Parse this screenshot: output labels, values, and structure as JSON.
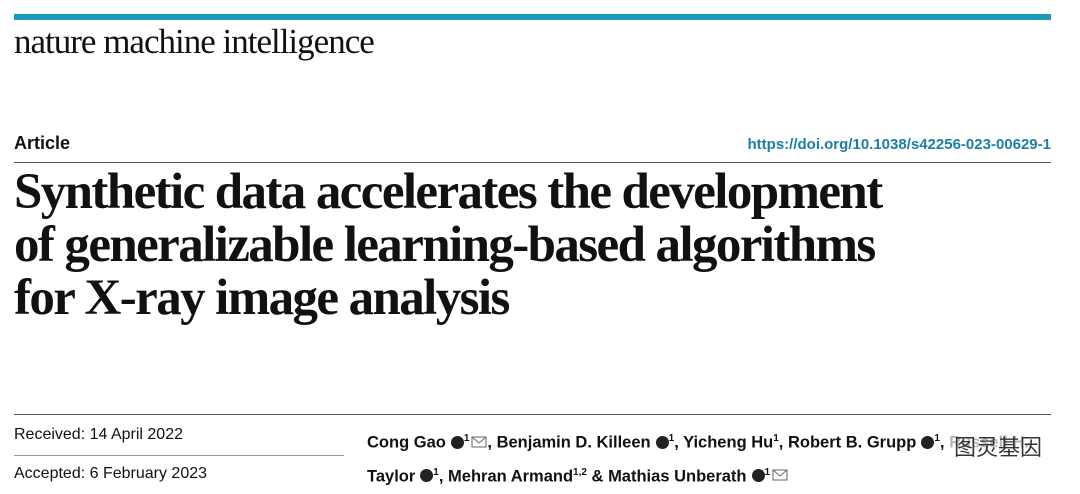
{
  "header": {
    "journal": "nature machine intelligence",
    "article_type": "Article",
    "doi": "https://doi.org/10.1038/s42256-023-00629-1"
  },
  "title": [
    "Synthetic data accelerates the development",
    "of generalizable learning-based algorithms",
    "for X-ray image analysis"
  ],
  "dates": {
    "received": "Received: 14 April 2022",
    "accepted": "Accepted: 6 February 2023"
  },
  "authors": {
    "list_separator": ",",
    "last_separator": "&",
    "people": [
      {
        "name": "Cong Gao",
        "affiliations": "1",
        "orcid": true,
        "corresponding": true
      },
      {
        "name": "Benjamin D. Killeen",
        "affiliations": "1",
        "orcid": true,
        "corresponding": false
      },
      {
        "name": "Yicheng Hu",
        "affiliations": "1",
        "orcid": false,
        "corresponding": false
      },
      {
        "name": "Robert B. Grupp",
        "affiliations": "1",
        "orcid": true,
        "corresponding": false
      },
      {
        "name": "Russell H. Taylor",
        "affiliations": "1",
        "orcid": true,
        "corresponding": false
      },
      {
        "name": "Mehran Armand",
        "affiliations": "1,2",
        "orcid": false,
        "corresponding": false
      },
      {
        "name": "Mathias Unberath",
        "affiliations": "1",
        "orcid": true,
        "corresponding": true
      }
    ]
  },
  "watermark": "图灵基因"
}
